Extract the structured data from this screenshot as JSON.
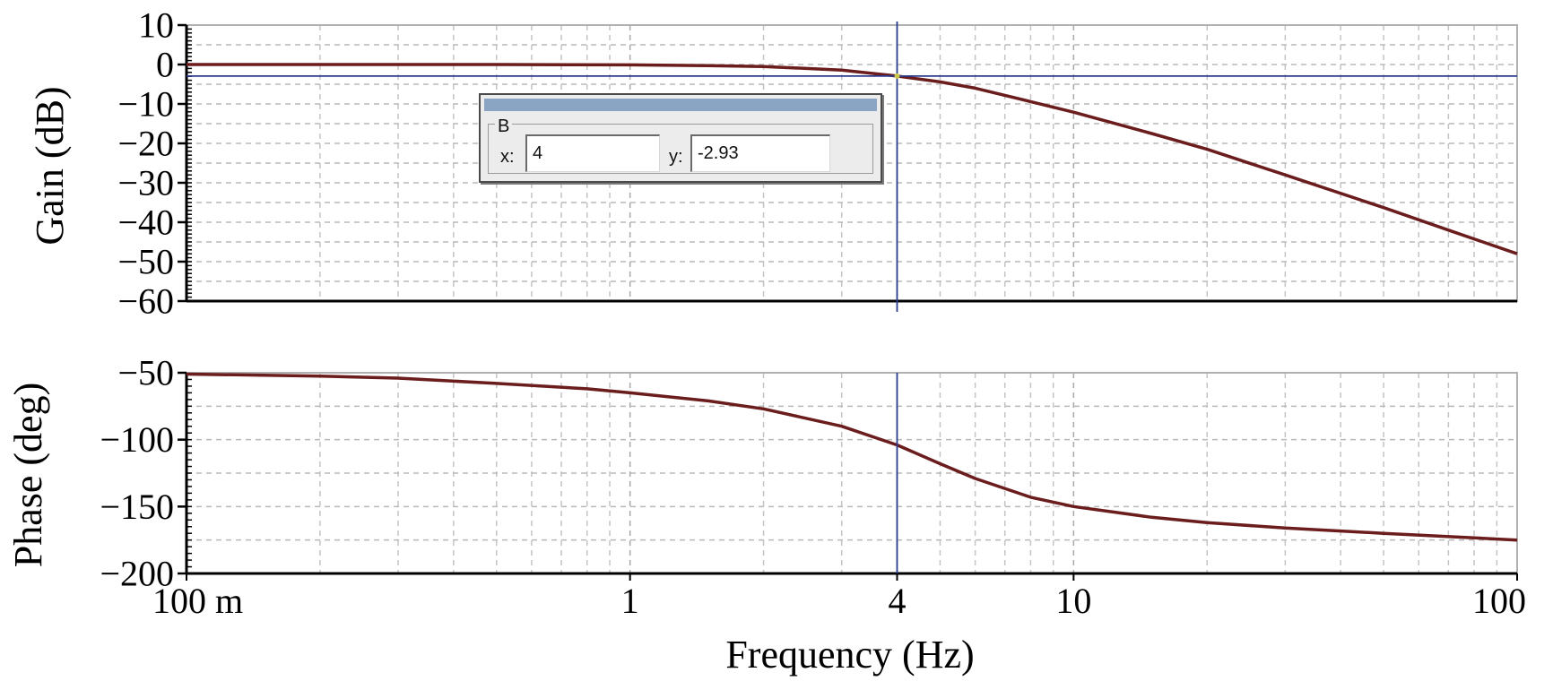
{
  "chart_data": [
    {
      "type": "line",
      "panel": "gain",
      "xlabel": "Frequency (Hz)",
      "ylabel": "Gain (dB)",
      "xscale": "log",
      "xlim": [
        0.1,
        100
      ],
      "ylim": [
        -60,
        10
      ],
      "grid": true,
      "y_ticks": [
        10,
        0,
        -10,
        -20,
        -30,
        -40,
        -50,
        -60
      ],
      "y_tick_labels": [
        "10",
        "0",
        "−10",
        "−20",
        "−30",
        "−40",
        "−50",
        "−60"
      ],
      "series": [
        {
          "color": "#6b1c1c",
          "x": [
            0.1,
            0.3,
            0.5,
            1,
            1.5,
            2,
            3,
            4,
            5,
            6,
            8,
            10,
            15,
            20,
            30,
            50,
            70,
            100
          ],
          "y": [
            0,
            0,
            0,
            -0.1,
            -0.3,
            -0.5,
            -1.4,
            -2.93,
            -4.4,
            -6,
            -9.4,
            -12.1,
            -17.5,
            -21.5,
            -28,
            -36.3,
            -42,
            -48
          ]
        }
      ]
    },
    {
      "type": "line",
      "panel": "phase",
      "xlabel": "Frequency (Hz)",
      "ylabel": "Phase (deg)",
      "xscale": "log",
      "xlim": [
        0.1,
        100
      ],
      "ylim": [
        -200,
        -50
      ],
      "grid": true,
      "y_ticks": [
        -50,
        -100,
        -150,
        -200
      ],
      "y_tick_labels": [
        "−50",
        "−100",
        "−150",
        "−200"
      ],
      "x_ticks": [
        0.1,
        1,
        4,
        10,
        100
      ],
      "x_tick_labels": [
        "100 m",
        "1",
        "4",
        "10",
        "100"
      ],
      "series": [
        {
          "color": "#6b1c1c",
          "x": [
            0.1,
            0.2,
            0.3,
            0.5,
            0.8,
            1,
            1.5,
            2,
            3,
            4,
            5,
            6,
            8,
            10,
            15,
            20,
            30,
            50,
            100
          ],
          "y": [
            -51,
            -52.5,
            -54,
            -58,
            -62,
            -65,
            -71,
            -77,
            -90,
            -104,
            -118,
            -129,
            -143,
            -150,
            -158,
            -162,
            -166,
            -170,
            -175
          ]
        }
      ]
    }
  ],
  "cursor": {
    "x_value": 4,
    "y_value": -2.93,
    "line_color": "#2b3b8f"
  },
  "cursor_dialog": {
    "group_label": "B",
    "x_label": "x:",
    "x_value": "4",
    "y_label": "y:",
    "y_value": "-2.93"
  }
}
